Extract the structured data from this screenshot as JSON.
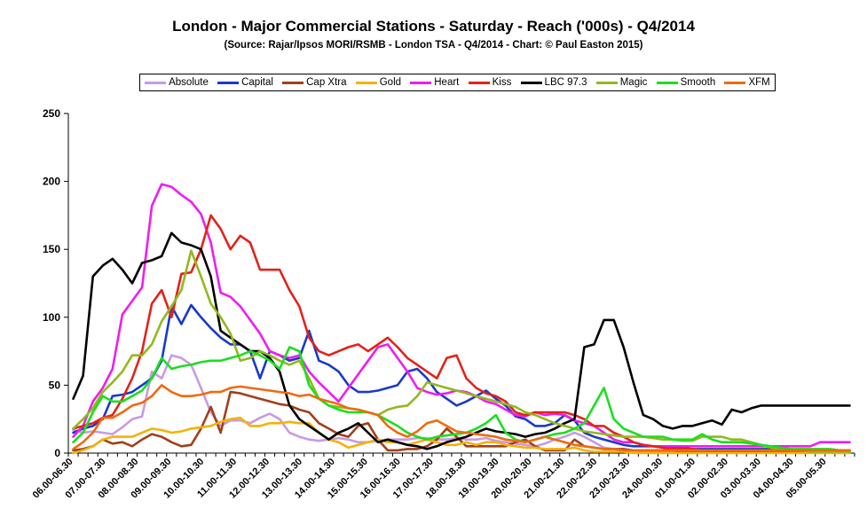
{
  "chart_data": {
    "type": "line",
    "title": "London - Major Commercial Stations - Saturday - Reach ('000s) - Q4/2014",
    "subtitle": "(Source: Rajar/Ipsos MORI/RSMB - London TSA - Q4/2014 - Chart: © Paul Easton 2015)",
    "xlabel": "",
    "ylabel": "",
    "ylim": [
      0,
      250
    ],
    "yticks": [
      "0",
      "50",
      "100",
      "150",
      "200",
      "250"
    ],
    "x_tick_labels": [
      "06.00-06.30",
      "07.00-07.30",
      "08.00-08.30",
      "09.00-09.30",
      "10.00-10.30",
      "11.00-11.30",
      "12.00-12.30",
      "13.00-13.30",
      "14.00-14.30",
      "15.00-15.30",
      "16.00-16.30",
      "17.00-17.30",
      "18.00-18.30",
      "19.00-19.30",
      "20.00-20.30",
      "21.00-21.30",
      "22.00-22.30",
      "23.00-23.30",
      "24.00-00.30",
      "01.00-01.30",
      "02.00-02.30",
      "03.00-03.30",
      "04.00-04.30",
      "05.00-05.30"
    ],
    "grid": false,
    "legend_position": "top",
    "series": [
      {
        "name": "Absolute",
        "color": "#c89be0",
        "values": [
          17,
          15,
          16,
          15,
          14,
          19,
          25,
          27,
          60,
          55,
          72,
          70,
          65,
          48,
          30,
          20,
          24,
          24,
          22,
          26,
          29,
          25,
          15,
          12,
          10,
          9,
          10,
          11,
          10,
          8,
          8,
          9,
          10,
          10,
          10,
          11,
          11,
          10,
          10,
          11,
          10,
          10,
          11,
          9,
          8,
          7,
          6,
          5,
          7,
          10,
          12,
          15,
          12,
          8,
          4,
          3,
          2,
          2,
          1,
          1,
          1,
          1,
          1,
          1,
          1,
          1,
          1,
          1,
          1,
          1,
          1,
          1,
          1,
          1,
          1,
          1,
          1,
          1,
          1,
          1
        ]
      },
      {
        "name": "Capital",
        "color": "#1a39c9",
        "values": [
          15,
          18,
          20,
          25,
          42,
          43,
          45,
          50,
          55,
          68,
          108,
          95,
          109,
          100,
          92,
          85,
          80,
          80,
          75,
          55,
          75,
          72,
          68,
          70,
          90,
          68,
          65,
          60,
          50,
          45,
          45,
          46,
          48,
          50,
          60,
          62,
          55,
          45,
          40,
          35,
          38,
          42,
          46,
          40,
          35,
          27,
          25,
          20,
          20,
          22,
          28,
          24,
          15,
          12,
          10,
          8,
          6,
          5,
          5,
          5,
          4,
          4,
          4,
          3,
          3,
          3,
          3,
          3,
          3,
          3,
          3,
          3,
          2,
          2,
          2,
          2,
          2,
          2,
          2,
          2
        ]
      },
      {
        "name": "Cap Xtra",
        "color": "#a0401a",
        "values": [
          2,
          3,
          5,
          10,
          7,
          8,
          5,
          10,
          14,
          12,
          8,
          5,
          6,
          18,
          34,
          15,
          45,
          44,
          42,
          40,
          38,
          36,
          35,
          32,
          30,
          22,
          18,
          14,
          12,
          20,
          22,
          10,
          2,
          2,
          3,
          3,
          5,
          10,
          18,
          12,
          5,
          5,
          5,
          5,
          5,
          8,
          10,
          5,
          2,
          2,
          2,
          10,
          5,
          4,
          3,
          3,
          3,
          2,
          2,
          2,
          2,
          2,
          1,
          1,
          1,
          1,
          1,
          1,
          1,
          1,
          1,
          1,
          1,
          1,
          1,
          1,
          1,
          1,
          1,
          1
        ]
      },
      {
        "name": "Gold",
        "color": "#f5b10a",
        "values": [
          0,
          2,
          5,
          10,
          12,
          12,
          12,
          15,
          18,
          17,
          15,
          16,
          18,
          19,
          20,
          23,
          25,
          26,
          20,
          20,
          22,
          22,
          23,
          22,
          22,
          15,
          10,
          8,
          4,
          6,
          8,
          10,
          8,
          8,
          6,
          8,
          10,
          8,
          6,
          6,
          8,
          6,
          8,
          8,
          6,
          5,
          4,
          4,
          3,
          3,
          3,
          4,
          2,
          1,
          1,
          1,
          1,
          0,
          0,
          0,
          0,
          0,
          0,
          0,
          0,
          0,
          0,
          0,
          0,
          0,
          0,
          0,
          0,
          0,
          0,
          0,
          0,
          0,
          0,
          0
        ]
      },
      {
        "name": "Heart",
        "color": "#f01cf0",
        "values": [
          12,
          20,
          38,
          48,
          62,
          102,
          112,
          122,
          182,
          198,
          196,
          190,
          185,
          176,
          155,
          118,
          115,
          108,
          98,
          88,
          75,
          72,
          70,
          72,
          60,
          52,
          45,
          38,
          48,
          58,
          68,
          78,
          80,
          70,
          60,
          48,
          45,
          43,
          44,
          46,
          45,
          42,
          38,
          36,
          32,
          28,
          27,
          30,
          28,
          29,
          28,
          24,
          22,
          20,
          15,
          10,
          8,
          8,
          6,
          5,
          5,
          5,
          5,
          5,
          5,
          5,
          5,
          5,
          5,
          5,
          5,
          5,
          5,
          5,
          5,
          5,
          8,
          8,
          8,
          8
        ]
      },
      {
        "name": "Kiss",
        "color": "#e2231a",
        "values": [
          18,
          20,
          22,
          26,
          28,
          40,
          55,
          75,
          110,
          120,
          100,
          132,
          133,
          150,
          175,
          165,
          150,
          160,
          155,
          135,
          135,
          135,
          120,
          108,
          85,
          75,
          72,
          75,
          78,
          80,
          75,
          80,
          85,
          78,
          70,
          65,
          60,
          55,
          70,
          72,
          55,
          48,
          44,
          42,
          38,
          30,
          28,
          30,
          30,
          30,
          30,
          28,
          25,
          20,
          20,
          15,
          12,
          8,
          6,
          5,
          4,
          3,
          3,
          3,
          2,
          2,
          2,
          2,
          2,
          2,
          2,
          2,
          2,
          2,
          2,
          2,
          2,
          2,
          2,
          2
        ]
      },
      {
        "name": "LBC 97.3",
        "color": "#000000",
        "values": [
          40,
          57,
          130,
          138,
          143,
          135,
          125,
          140,
          142,
          145,
          162,
          155,
          153,
          150,
          130,
          90,
          85,
          80,
          75,
          75,
          70,
          60,
          35,
          25,
          20,
          15,
          10,
          15,
          18,
          22,
          15,
          8,
          10,
          8,
          6,
          5,
          3,
          5,
          8,
          10,
          12,
          15,
          18,
          16,
          15,
          14,
          12,
          14,
          15,
          18,
          22,
          25,
          78,
          80,
          98,
          98,
          78,
          52,
          28,
          25,
          20,
          18,
          20,
          20,
          22,
          24,
          21,
          32,
          30,
          33,
          35,
          35,
          35,
          35,
          35,
          35,
          35,
          35,
          35,
          35
        ]
      },
      {
        "name": "Magic",
        "color": "#93b81e",
        "values": [
          18,
          25,
          33,
          45,
          52,
          60,
          72,
          72,
          80,
          97,
          108,
          120,
          149,
          130,
          110,
          100,
          88,
          68,
          70,
          75,
          72,
          68,
          65,
          68,
          55,
          40,
          35,
          34,
          33,
          32,
          30,
          28,
          32,
          34,
          35,
          42,
          52,
          50,
          48,
          46,
          44,
          42,
          40,
          38,
          36,
          34,
          30,
          28,
          25,
          22,
          20,
          18,
          16,
          15,
          14,
          13,
          12,
          12,
          12,
          11,
          10,
          10,
          9,
          9,
          12,
          12,
          12,
          10,
          10,
          8,
          6,
          4,
          3,
          2,
          2,
          1,
          1,
          1,
          1,
          1
        ]
      },
      {
        "name": "Smooth",
        "color": "#19e01d",
        "values": [
          8,
          15,
          30,
          42,
          38,
          38,
          42,
          46,
          55,
          70,
          62,
          64,
          65,
          67,
          68,
          68,
          70,
          72,
          75,
          72,
          68,
          62,
          78,
          75,
          50,
          40,
          35,
          32,
          30,
          30,
          30,
          28,
          24,
          20,
          15,
          12,
          10,
          12,
          13,
          14,
          15,
          18,
          22,
          28,
          15,
          10,
          8,
          10,
          12,
          14,
          15,
          18,
          22,
          35,
          48,
          25,
          18,
          15,
          12,
          12,
          12,
          10,
          10,
          10,
          14,
          10,
          8,
          8,
          8,
          7,
          6,
          5,
          4,
          3,
          3,
          3,
          3,
          3,
          2,
          2
        ]
      },
      {
        "name": "XFM",
        "color": "#f06a0f",
        "values": [
          3,
          8,
          15,
          26,
          26,
          30,
          35,
          37,
          42,
          50,
          45,
          42,
          42,
          43,
          45,
          45,
          48,
          49,
          48,
          47,
          46,
          45,
          44,
          42,
          43,
          40,
          38,
          36,
          33,
          32,
          30,
          28,
          20,
          15,
          12,
          16,
          22,
          24,
          20,
          16,
          15,
          14,
          13,
          12,
          10,
          9,
          8,
          10,
          12,
          10,
          8,
          6,
          5,
          4,
          3,
          3,
          2,
          2,
          2,
          2,
          2,
          2,
          2,
          2,
          2,
          2,
          2,
          2,
          2,
          2,
          2,
          2,
          2,
          2,
          2,
          2,
          2,
          2,
          2,
          2
        ]
      }
    ]
  }
}
